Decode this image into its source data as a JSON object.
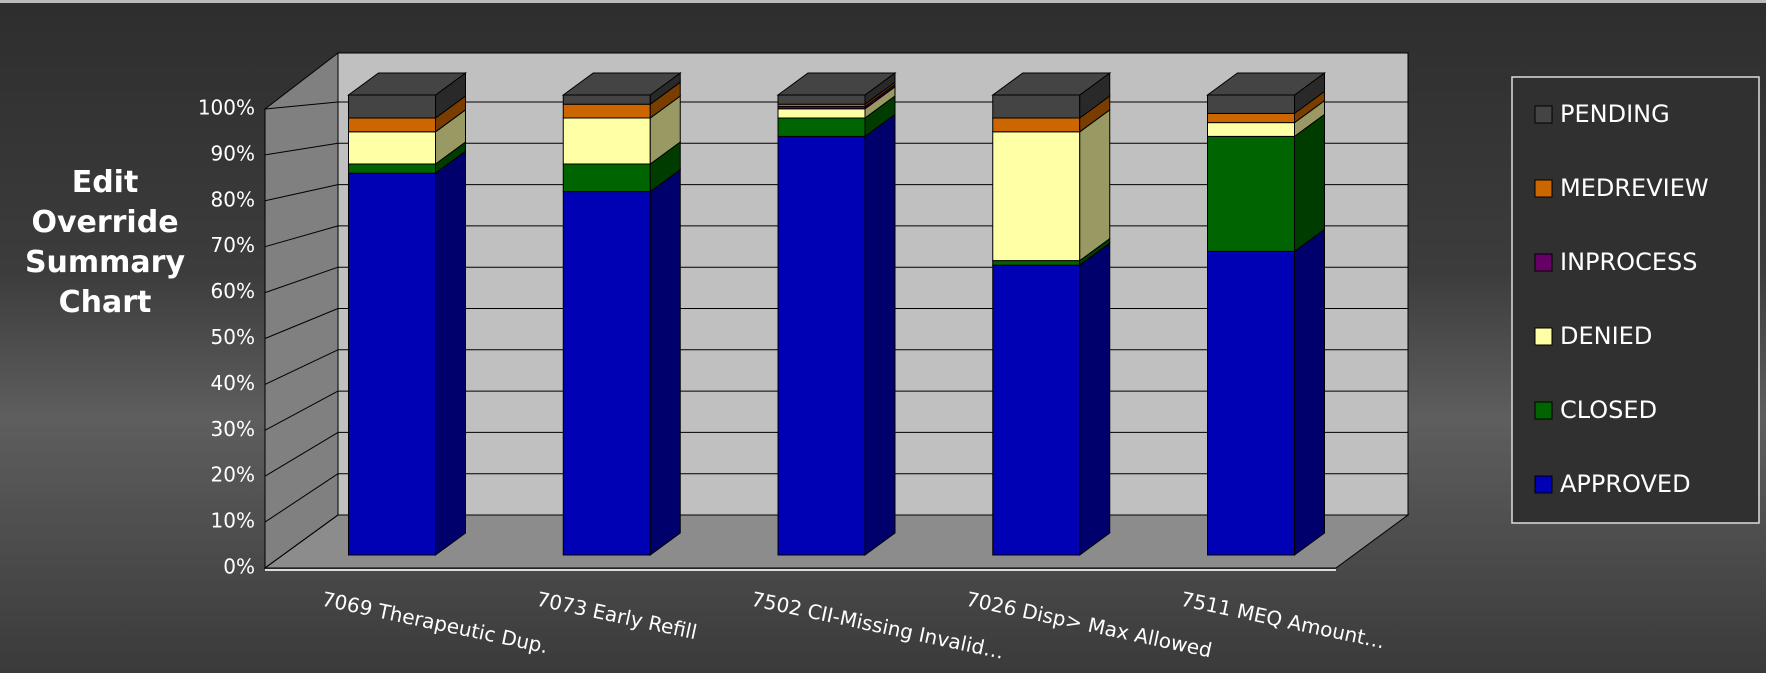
{
  "chart_data": {
    "type": "bar3d_stacked",
    "title": "Edit Override Summary Chart",
    "categories": [
      "7069 Therapeutic Dup.",
      "7073 Early Refill",
      "7502 CII-Missing Invalid…",
      "7026 Disp> Max Allowed",
      "7511 MEQ Amount…"
    ],
    "series": [
      {
        "name": "APPROVED",
        "color": "#0000b4",
        "values": [
          83,
          79,
          91,
          63,
          66
        ]
      },
      {
        "name": "CLOSED",
        "color": "#006400",
        "values": [
          2,
          6,
          4,
          1,
          25
        ]
      },
      {
        "name": "DENIED",
        "color": "#ffffa6",
        "values": [
          7,
          10,
          2,
          28,
          3
        ]
      },
      {
        "name": "INPROCESS",
        "color": "#660066",
        "values": [
          0,
          0,
          0.5,
          0,
          0
        ]
      },
      {
        "name": "MEDREVIEW",
        "color": "#cc6600",
        "values": [
          3,
          3,
          0.5,
          3,
          2
        ]
      },
      {
        "name": "PENDING",
        "color": "#444444",
        "values": [
          5,
          2,
          2,
          5,
          4
        ]
      }
    ],
    "ylim": [
      0,
      100
    ],
    "yticks": [
      {
        "value": 0,
        "label": "0%"
      },
      {
        "value": 10,
        "label": "10%"
      },
      {
        "value": 20,
        "label": "20%"
      },
      {
        "value": 30,
        "label": "30%"
      },
      {
        "value": 40,
        "label": "40%"
      },
      {
        "value": 50,
        "label": "50%"
      },
      {
        "value": 60,
        "label": "60%"
      },
      {
        "value": 70,
        "label": "70%"
      },
      {
        "value": 80,
        "label": "80%"
      },
      {
        "value": 90,
        "label": "90%"
      },
      {
        "value": 100,
        "label": "100%"
      }
    ],
    "grid": true,
    "legend": "right"
  }
}
